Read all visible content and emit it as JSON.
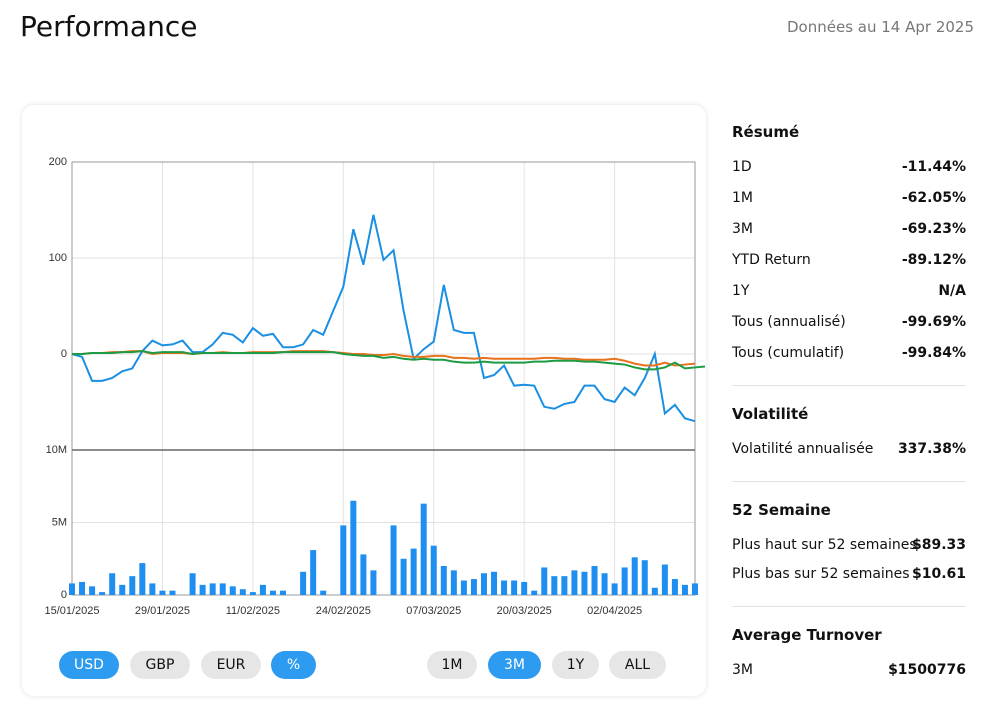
{
  "header": {
    "title": "Performance",
    "date": "Données au 14 Apr 2025"
  },
  "chart_data": [
    {
      "type": "line",
      "ylim": [
        -100,
        200
      ],
      "yticks": [
        0,
        100,
        200
      ],
      "grid": true,
      "series": [
        {
          "color": "#1a8fe3",
          "values": [
            0,
            -3,
            -28,
            -28,
            -25,
            -18,
            -15,
            3,
            14,
            9,
            10,
            14,
            2,
            2,
            10,
            22,
            20,
            12,
            27,
            19,
            21,
            7,
            7,
            10,
            25,
            20,
            45,
            70,
            130,
            93,
            145,
            98,
            108,
            45,
            -5,
            5,
            13,
            72,
            25,
            22,
            22,
            -25,
            -22,
            -12,
            -33,
            -32,
            -33,
            -55,
            -57,
            -52,
            -50,
            -33,
            -33,
            -47,
            -50,
            -35,
            -43,
            -25,
            0,
            -62,
            -53,
            -67,
            -70
          ]
        },
        {
          "color": "#e8711c",
          "values": [
            0,
            0,
            1,
            1,
            2,
            2,
            3,
            3,
            0,
            1,
            1,
            1,
            0,
            1,
            1,
            2,
            1,
            1,
            2,
            2,
            2,
            2,
            3,
            3,
            3,
            3,
            2,
            1,
            0,
            0,
            -1,
            -1,
            0,
            -2,
            -3,
            -3,
            -2,
            -2,
            -4,
            -4,
            -5,
            -4,
            -5,
            -5,
            -5,
            -5,
            -5,
            -4,
            -4,
            -5,
            -5,
            -6,
            -6,
            -6,
            -5,
            -7,
            -10,
            -12,
            -12,
            -9,
            -12,
            -11,
            -10
          ]
        },
        {
          "color": "#1e9a44",
          "values": [
            0,
            0,
            1,
            1,
            1,
            2,
            2,
            3,
            1,
            2,
            2,
            2,
            0,
            1,
            1,
            1,
            1,
            1,
            1,
            1,
            1,
            2,
            2,
            2,
            2,
            2,
            2,
            0,
            -1,
            -2,
            -2,
            -4,
            -3,
            -5,
            -6,
            -5,
            -6,
            -6,
            -8,
            -9,
            -9,
            -8,
            -9,
            -9,
            -9,
            -9,
            -8,
            -8,
            -7,
            -7,
            -7,
            -8,
            -8,
            -9,
            -10,
            -11,
            -14,
            -16,
            -16,
            -14,
            -9,
            -15,
            -14,
            -13
          ]
        }
      ]
    },
    {
      "type": "bar",
      "color": "#1f8ef1",
      "categories": [
        "15/01/2025",
        null,
        null,
        null,
        null,
        null,
        null,
        null,
        null,
        "29/01/2025",
        null,
        null,
        null,
        null,
        null,
        null,
        null,
        null,
        "11/02/2025",
        null,
        null,
        null,
        null,
        null,
        null,
        null,
        null,
        "24/02/2025",
        null,
        null,
        null,
        null,
        null,
        null,
        null,
        null,
        "07/03/2025",
        null,
        null,
        null,
        null,
        null,
        null,
        null,
        null,
        "20/03/2025",
        null,
        null,
        null,
        null,
        null,
        null,
        null,
        null,
        "02/04/2025",
        null,
        null,
        null,
        null,
        null,
        null,
        null,
        null
      ],
      "values": [
        800000,
        900000,
        600000,
        200000,
        1500000,
        700000,
        1300000,
        2200000,
        800000,
        300000,
        300000,
        0,
        1500000,
        700000,
        800000,
        800000,
        600000,
        400000,
        200000,
        700000,
        300000,
        300000,
        0,
        1600000,
        3100000,
        300000,
        0,
        4800000,
        6500000,
        2800000,
        1700000,
        0,
        4800000,
        2500000,
        3200000,
        6300000,
        3400000,
        2000000,
        1700000,
        1000000,
        1100000,
        1500000,
        1600000,
        1000000,
        1000000,
        900000,
        300000,
        1900000,
        1300000,
        1300000,
        1700000,
        1600000,
        2000000,
        1500000,
        800000,
        1900000,
        2600000,
        2400000,
        500000,
        2100000,
        1100000,
        700000,
        800000
      ],
      "ylim": [
        0,
        10000000
      ],
      "yticks": [
        {
          "value": 0,
          "label": "0"
        },
        {
          "value": 5000000,
          "label": "5M"
        },
        {
          "value": 10000000,
          "label": "10M"
        }
      ],
      "grid": true
    }
  ],
  "buttons": {
    "currency": [
      "USD",
      "GBP",
      "EUR",
      "%"
    ],
    "currency_active": [
      0,
      3
    ],
    "range": [
      "1M",
      "3M",
      "1Y",
      "ALL"
    ],
    "range_active": [
      1
    ]
  },
  "summary": [
    {
      "title": "Résumé",
      "rows": [
        [
          "1D",
          "-11.44%"
        ],
        [
          "1M",
          "-62.05%"
        ],
        [
          "3M",
          "-69.23%"
        ],
        [
          "YTD Return",
          "-89.12%"
        ],
        [
          "1Y",
          "N/A"
        ],
        [
          "Tous (annualisé)",
          "-99.69%"
        ],
        [
          "Tous (cumulatif)",
          "-99.84%"
        ]
      ]
    },
    {
      "title": "Volatilité",
      "rows": [
        [
          "Volatilité annualisée",
          "337.38%"
        ]
      ]
    },
    {
      "title": "52 Semaine",
      "rows": [
        [
          "Plus haut sur 52 semaines",
          "$89.33"
        ],
        [
          "Plus bas sur 52 semaines",
          "$10.61"
        ]
      ]
    },
    {
      "title": "Average Turnover",
      "rows": [
        [
          "3M",
          "$1500776"
        ]
      ]
    }
  ]
}
